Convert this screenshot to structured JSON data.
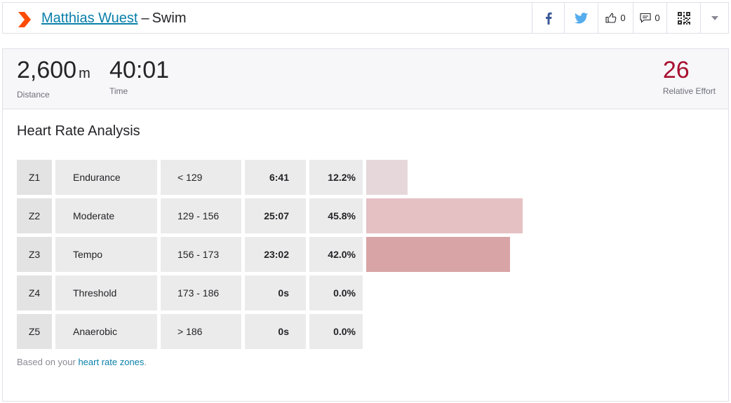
{
  "header": {
    "athlete_name": "Matthias Wuest",
    "separator": "–",
    "activity_type": "Swim",
    "kudos_count": "0",
    "comment_count": "0"
  },
  "icons": {
    "logo": "strava-chevron-icon",
    "facebook": "facebook-icon",
    "twitter": "twitter-icon",
    "kudos": "thumbs-up-icon",
    "comments": "comment-icon",
    "qr": "qr-code-icon",
    "more": "chevron-down-icon"
  },
  "colors": {
    "brand": "#fc4c02",
    "link": "#0a7fa8",
    "effort": "#a8102e",
    "facebook": "#3b5998",
    "twitter": "#55acee"
  },
  "stats": {
    "distance_value": "2,600",
    "distance_unit": "m",
    "distance_label": "Distance",
    "time_value": "40:01",
    "time_label": "Time",
    "effort_value": "26",
    "effort_label": "Relative Effort"
  },
  "section_title": "Heart Rate Analysis",
  "zones": [
    {
      "zone": "Z1",
      "name": "Endurance",
      "range": "< 129",
      "time": "6:41",
      "percent": "12.2%",
      "pct_value": 12.2,
      "bar_color": "#e6d8da"
    },
    {
      "zone": "Z2",
      "name": "Moderate",
      "range": "129 - 156",
      "time": "25:07",
      "percent": "45.8%",
      "pct_value": 45.8,
      "bar_color": "#e5c1c3"
    },
    {
      "zone": "Z3",
      "name": "Tempo",
      "range": "156 - 173",
      "time": "23:02",
      "percent": "42.0%",
      "pct_value": 42.0,
      "bar_color": "#d8a4a6"
    },
    {
      "zone": "Z4",
      "name": "Threshold",
      "range": "173 - 186",
      "time": "0s",
      "percent": "0.0%",
      "pct_value": 0.0,
      "bar_color": "#d8a4a6"
    },
    {
      "zone": "Z5",
      "name": "Anaerobic",
      "range": "> 186",
      "time": "0s",
      "percent": "0.0%",
      "pct_value": 0.0,
      "bar_color": "#d8a4a6"
    }
  ],
  "footnote": {
    "prefix": "Based on your ",
    "link": "heart rate zones",
    "suffix": "."
  }
}
